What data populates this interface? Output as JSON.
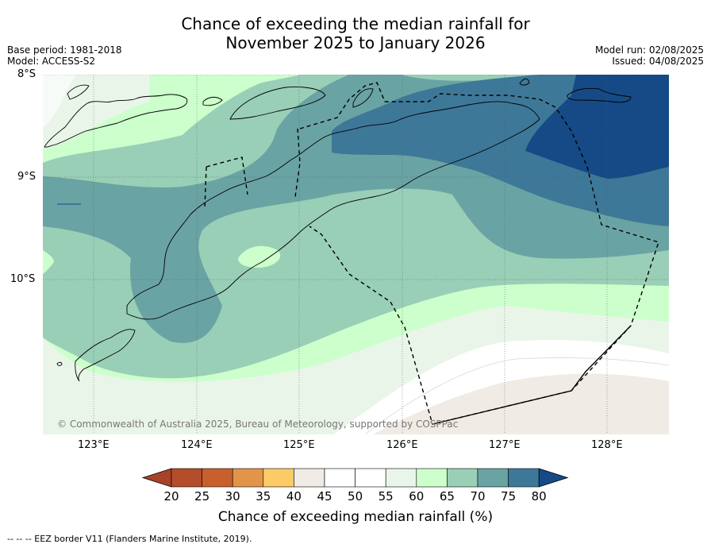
{
  "title_line1": "Chance of exceeding the median rainfall for",
  "title_line2": "November 2025 to January 2026",
  "base_period": "Base period: 1981-2018",
  "model": "Model: ACCESS-S2",
  "model_run": "Model run: 02/08/2025",
  "issued": "Issued: 04/08/2025",
  "copyright": "© Commonwealth of Australia 2025, Bureau of Meteorology, supported by COSPPac",
  "lat_labels": [
    "8°S",
    "9°S",
    "10°S"
  ],
  "lon_labels": [
    "123°E",
    "124°E",
    "125°E",
    "126°E",
    "127°E",
    "128°E"
  ],
  "colorbar": {
    "label": "Chance of exceeding median rainfall (%)",
    "ticks": [
      "20",
      "25",
      "30",
      "35",
      "40",
      "45",
      "50",
      "55",
      "60",
      "65",
      "70",
      "75",
      "80"
    ],
    "colors": [
      "#a8432a",
      "#b44d2a",
      "#c8602e",
      "#e2954a",
      "#fccb66",
      "#f0ebe4",
      "#ffffff",
      "#ffffff",
      "#eaf5ea",
      "#ccffcc",
      "#99cfb6",
      "#6aa3a3",
      "#3e7898",
      "#154a86"
    ]
  },
  "footnote": "--  --  -- EEZ border V11 (Flanders Marine Institute, 2019)."
}
